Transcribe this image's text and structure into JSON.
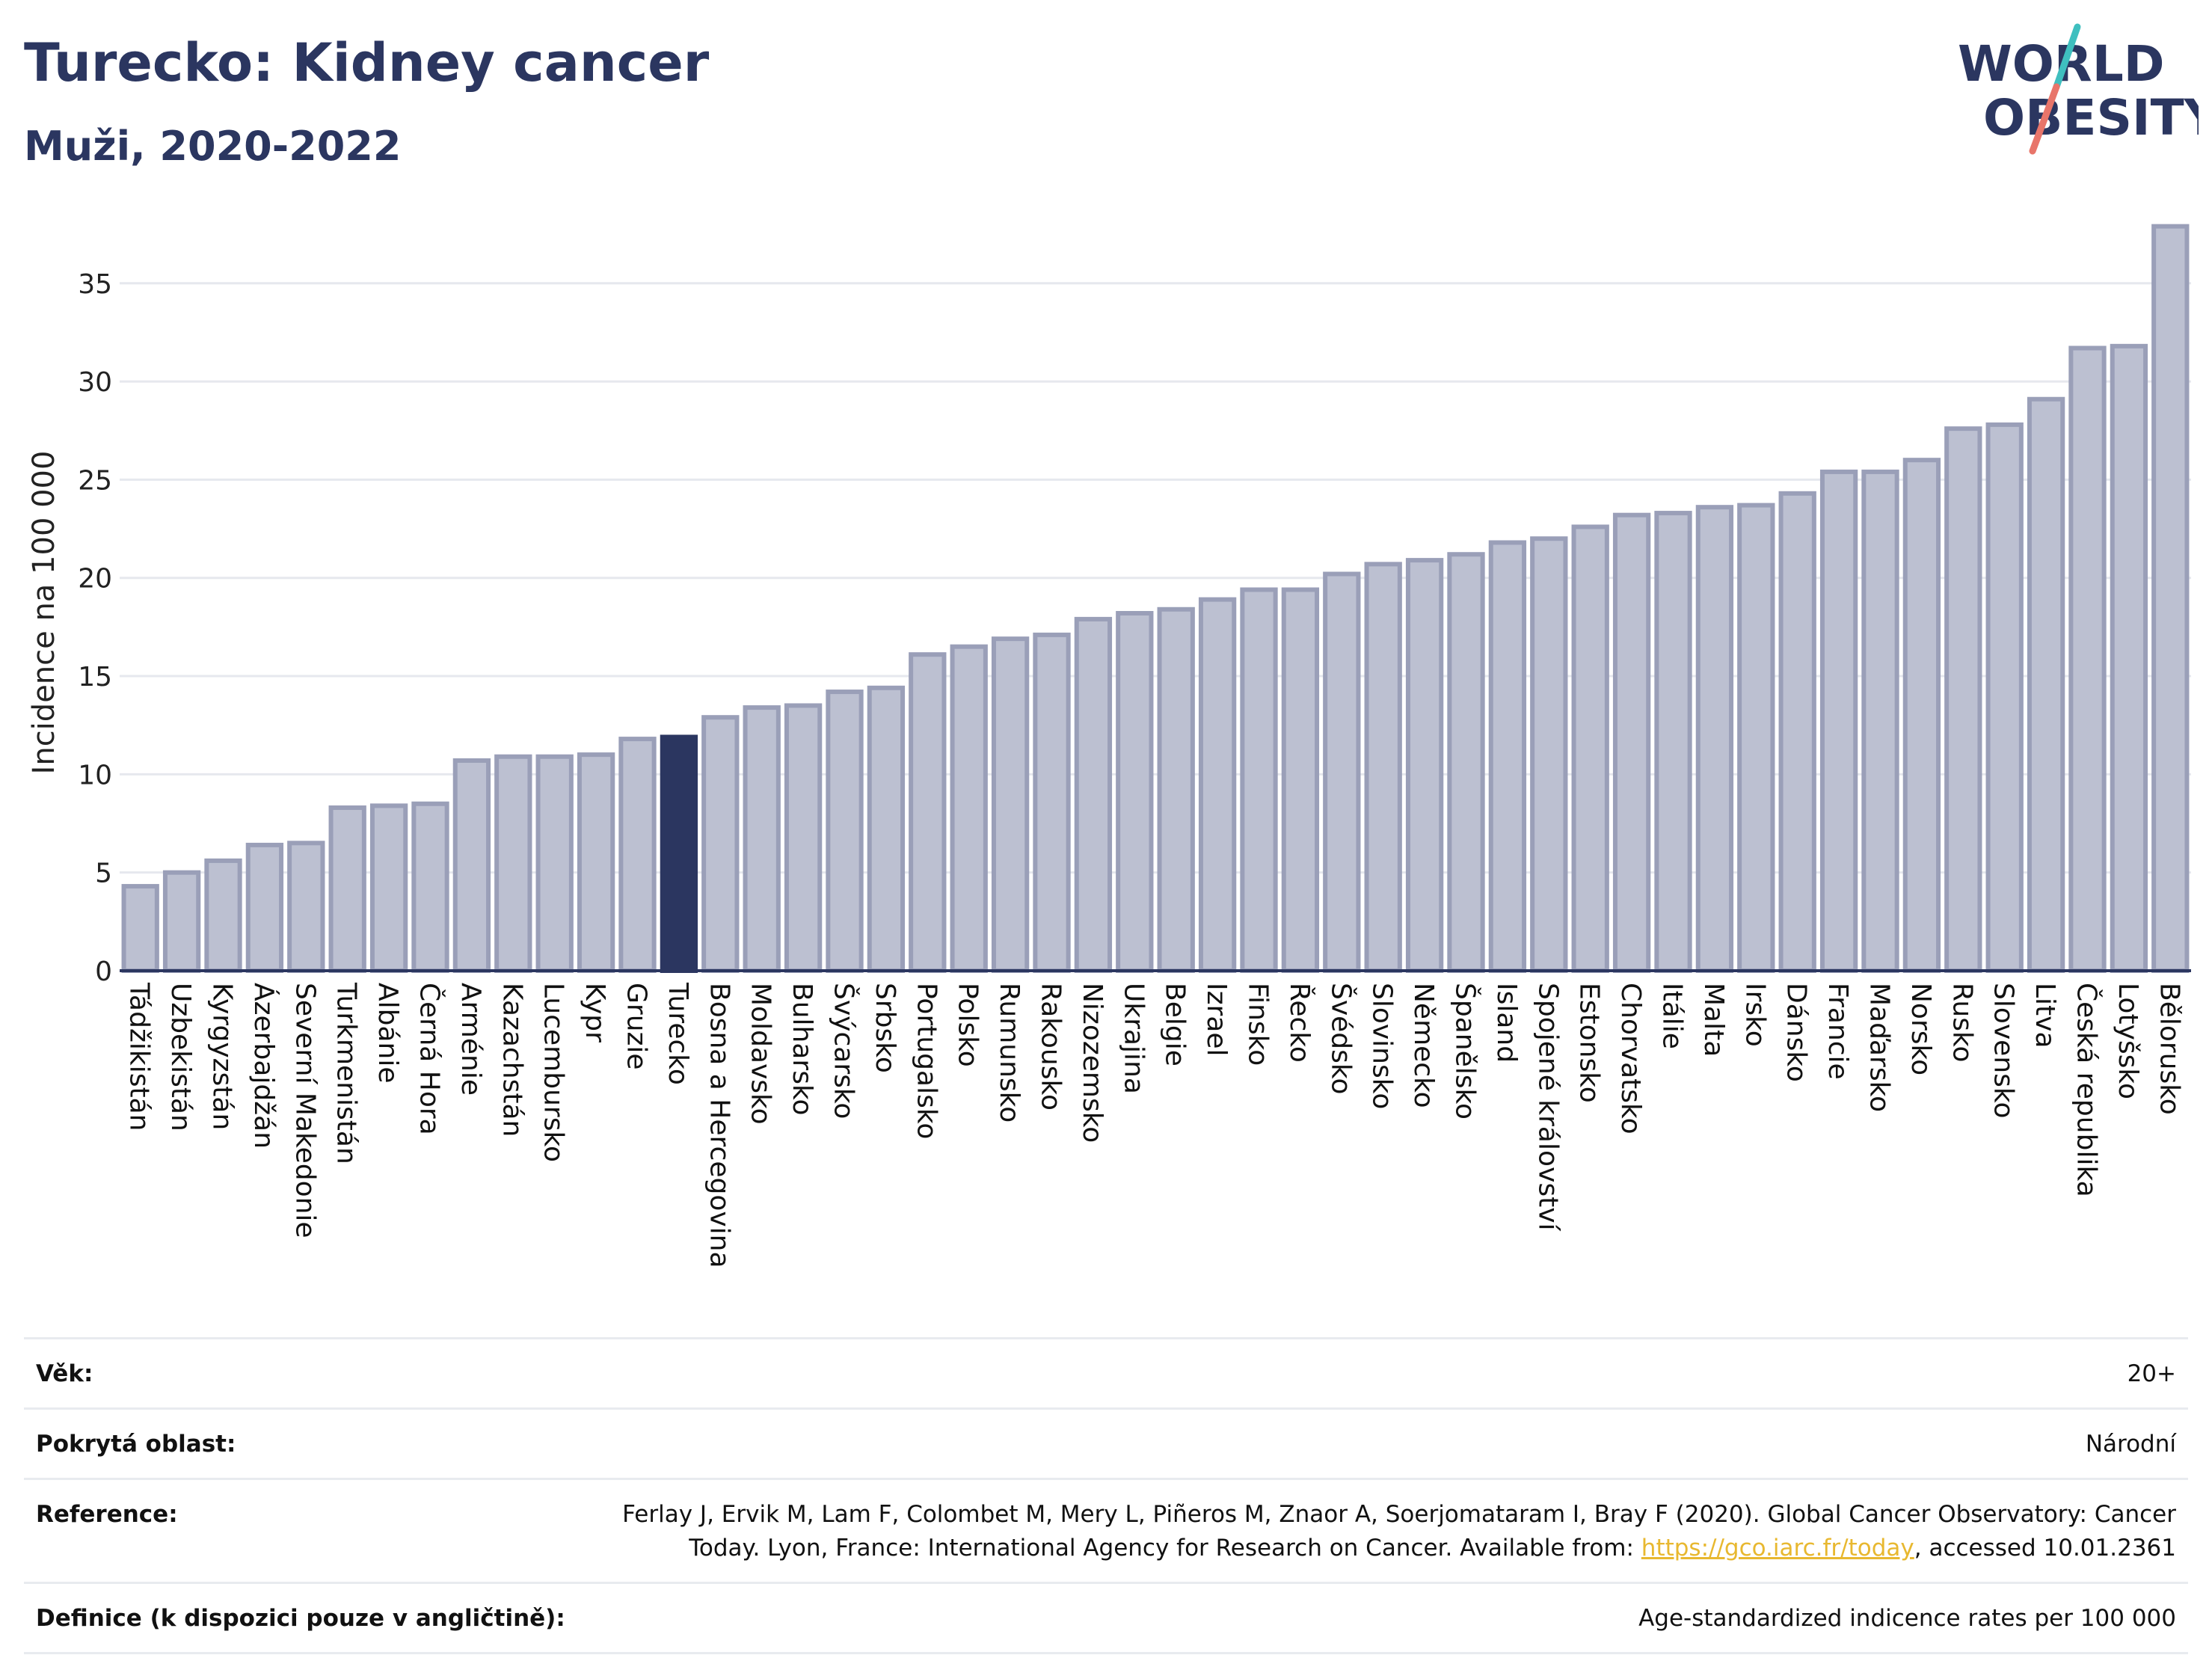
{
  "header": {
    "title": "Turecko: Kidney cancer",
    "subtitle": "Muži, 2020-2022"
  },
  "logo": {
    "line1": "WORLD",
    "line2": "OBESITY",
    "color": "#2b3660",
    "accent1": "#3fbfbf",
    "accent2": "#e8756a"
  },
  "colors": {
    "bar": "#bcc0d1",
    "bar_stroke": "#9a9fb8",
    "highlight": "#2b3660",
    "grid": "#e6e8ee",
    "axis": "#2b3660"
  },
  "chart_data": {
    "type": "bar",
    "title": "Turecko: Kidney cancer",
    "subtitle": "Muži, 2020-2022",
    "ylabel": "Incidence na 100 000",
    "xlabel": "",
    "ylim": [
      0,
      38
    ],
    "yticks": [
      0,
      5,
      10,
      15,
      20,
      25,
      30,
      35
    ],
    "highlight": "Turecko",
    "grid": true,
    "categories": [
      "Tádžikistán",
      "Uzbekistán",
      "Kyrgyzstán",
      "Ázerbajdžán",
      "Severní Makedonie",
      "Turkmenistán",
      "Albánie",
      "Černá Hora",
      "Arménie",
      "Kazachstán",
      "Lucembursko",
      "Kypr",
      "Gruzie",
      "Turecko",
      "Bosna a Hercegovina",
      "Moldavsko",
      "Bulharsko",
      "Švýcarsko",
      "Srbsko",
      "Portugalsko",
      "Polsko",
      "Rumunsko",
      "Rakousko",
      "Nizozemsko",
      "Ukrajina",
      "Belgie",
      "Izrael",
      "Finsko",
      "Řecko",
      "Švédsko",
      "Slovinsko",
      "Německo",
      "Španělsko",
      "Island",
      "Spojené království",
      "Estonsko",
      "Chorvatsko",
      "Itálie",
      "Malta",
      "Irsko",
      "Dánsko",
      "Francie",
      "Maďarsko",
      "Norsko",
      "Rusko",
      "Slovensko",
      "Litva",
      "Česká republika",
      "Lotyšsko",
      "Bělorusko"
    ],
    "values": [
      4.3,
      5.0,
      5.6,
      6.4,
      6.5,
      8.3,
      8.4,
      8.5,
      10.7,
      10.9,
      10.9,
      11.0,
      11.8,
      11.9,
      12.9,
      13.4,
      13.5,
      14.2,
      14.4,
      16.1,
      16.5,
      16.9,
      17.1,
      17.9,
      18.2,
      18.4,
      18.9,
      19.4,
      19.4,
      20.2,
      20.7,
      20.9,
      21.2,
      21.8,
      22.0,
      22.6,
      23.2,
      23.3,
      23.6,
      23.7,
      24.3,
      25.4,
      25.4,
      26.0,
      27.6,
      27.8,
      29.1,
      31.7,
      31.8,
      37.9
    ]
  },
  "footer": {
    "rows": [
      {
        "label": "Věk:",
        "value": "20+"
      },
      {
        "label": "Pokrytá oblast:",
        "value": "Národní"
      },
      {
        "label": "Reference:",
        "value": "Ferlay J, Ervik M, Lam F, Colombet M, Mery L, Piñeros M, Znaor A, Soerjomataram I, Bray F (2020). Global Cancer Observatory: Cancer Today. Lyon, France: International Agency for Research on Cancer. Available from:",
        "link": "https://gco.iarc.fr/today",
        "suffix": ", accessed 10.01.2361"
      },
      {
        "label": "Definice (k dispozici pouze v angličtině):",
        "value": "Age-standardized indicence rates per 100 000"
      }
    ]
  }
}
